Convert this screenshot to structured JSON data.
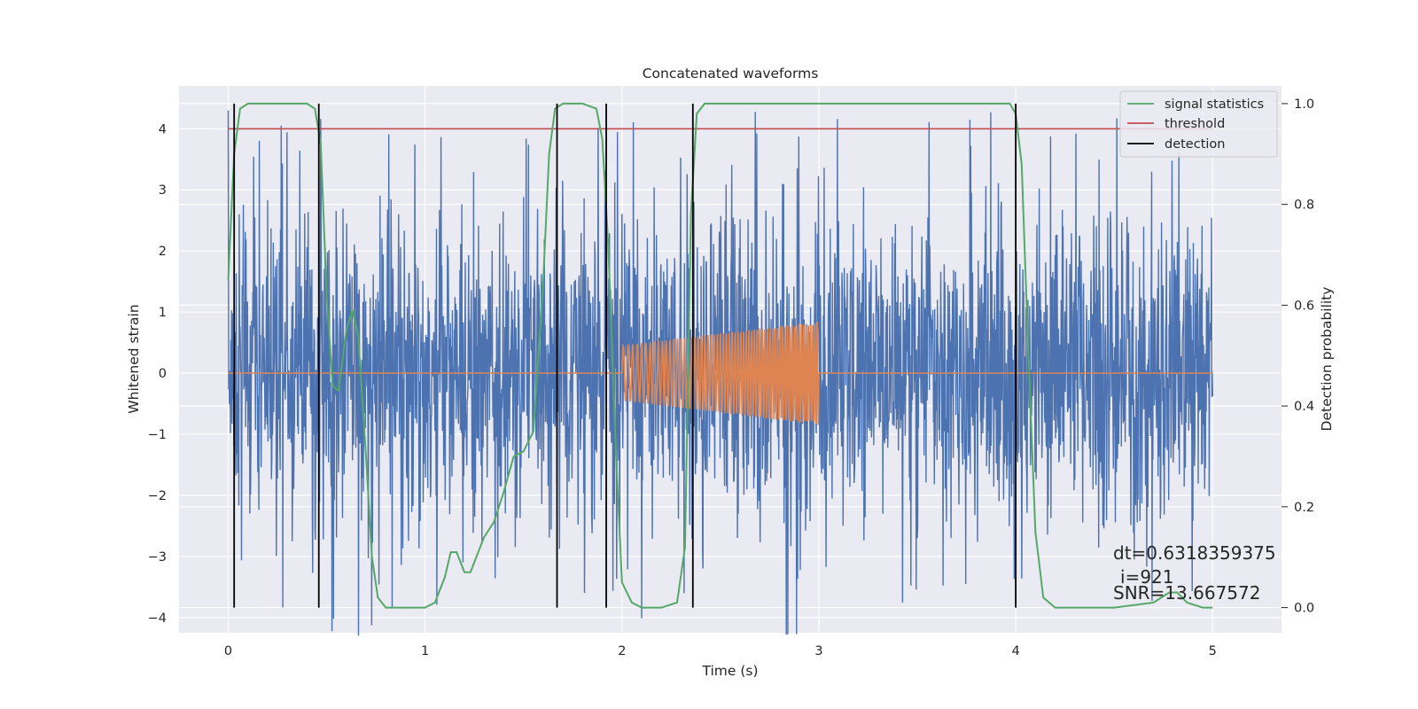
{
  "chart_data": {
    "type": "line",
    "title": "Concatenated waveforms",
    "xlabel": "Time (s)",
    "ylabel": "Whitened strain",
    "y2label": "Detection probability",
    "xlim": [
      -0.25,
      5.35
    ],
    "ylim": [
      -4.25,
      4.7
    ],
    "y2lim": [
      -0.05,
      1.035
    ],
    "x_ticks": [
      0,
      1,
      2,
      3,
      4,
      5
    ],
    "y_ticks": [
      -4,
      -3,
      -2,
      -1,
      0,
      1,
      2,
      3,
      4
    ],
    "y2_ticks": [
      0.0,
      0.2,
      0.4,
      0.6,
      0.8,
      1.0
    ],
    "x_tick_labels": [
      "0",
      "1",
      "2",
      "3",
      "4",
      "5"
    ],
    "y_tick_labels": [
      "−4",
      "−3",
      "−2",
      "−1",
      "0",
      "1",
      "2",
      "3",
      "4"
    ],
    "y2_tick_labels": [
      "0.0",
      "0.2",
      "0.4",
      "0.6",
      "0.8",
      "1.0"
    ],
    "grid": true,
    "legend_position": "top-right",
    "colors": {
      "strain": "#4c72b0",
      "injection": "#dd8452",
      "signal_statistics": "#55a868",
      "threshold": "#c44e52",
      "detection": "#000000",
      "plot_background": "#eaeaf2",
      "grid": "#ffffff"
    },
    "series": [
      {
        "name": "signal statistics",
        "axis": "right",
        "x": [
          0.0,
          0.03,
          0.06,
          0.1,
          0.2,
          0.3,
          0.4,
          0.44,
          0.47,
          0.5,
          0.53,
          0.56,
          0.6,
          0.63,
          0.66,
          0.7,
          0.73,
          0.76,
          0.8,
          0.9,
          1.0,
          1.05,
          1.1,
          1.13,
          1.16,
          1.2,
          1.23,
          1.26,
          1.3,
          1.35,
          1.4,
          1.45,
          1.5,
          1.55,
          1.6,
          1.63,
          1.66,
          1.7,
          1.8,
          1.87,
          1.9,
          1.93,
          1.97,
          2.0,
          2.05,
          2.1,
          2.2,
          2.28,
          2.32,
          2.35,
          2.38,
          2.42,
          2.5,
          3.0,
          3.5,
          3.97,
          4.0,
          4.03,
          4.06,
          4.1,
          4.14,
          4.2,
          4.5,
          4.7,
          4.78,
          4.82,
          4.87,
          4.95,
          5.0
        ],
        "y": [
          0.65,
          0.9,
          0.99,
          1.0,
          1.0,
          1.0,
          1.0,
          0.99,
          0.92,
          0.62,
          0.44,
          0.43,
          0.55,
          0.59,
          0.54,
          0.3,
          0.1,
          0.02,
          0.0,
          0.0,
          0.0,
          0.01,
          0.06,
          0.11,
          0.11,
          0.07,
          0.07,
          0.1,
          0.14,
          0.17,
          0.23,
          0.3,
          0.31,
          0.35,
          0.65,
          0.9,
          0.99,
          1.0,
          1.0,
          0.99,
          0.93,
          0.72,
          0.3,
          0.05,
          0.01,
          0.0,
          0.0,
          0.01,
          0.12,
          0.78,
          0.98,
          1.0,
          1.0,
          1.0,
          1.0,
          1.0,
          0.98,
          0.88,
          0.55,
          0.15,
          0.02,
          0.0,
          0.0,
          0.01,
          0.03,
          0.03,
          0.01,
          0.0,
          0.0
        ]
      },
      {
        "name": "threshold",
        "axis": "right",
        "x": [
          0.0,
          5.0
        ],
        "y": [
          0.95,
          0.95
        ]
      },
      {
        "name": "detection",
        "type": "vlines",
        "x": [
          0.03,
          0.46,
          1.67,
          1.92,
          2.36,
          4.0
        ],
        "ymin": 0.0,
        "ymax": 1.0
      },
      {
        "axis": "left",
        "description": "dense whitened noise trace, amplitude mostly within ±2.5 with spikes up to about ±4",
        "x_range": [
          0.0,
          5.0
        ],
        "typical_amplitude": 2.3,
        "max_excursion": 4.3,
        "seed": 7
      },
      {
        "axis": "left",
        "description": "injected waveform: zero except an oscillating chirp between 2 and 3 s",
        "x_range": [
          0.0,
          5.0
        ],
        "chirp_start": 2.0,
        "chirp_end": 3.0,
        "amplitude_start": 0.45,
        "amplitude_end": 0.85,
        "frequency_start": 40,
        "frequency_end": 90
      }
    ],
    "annotations": [
      {
        "text": "dt=0.6318359375"
      },
      {
        "text": "i=921"
      },
      {
        "text": "SNR=13.667572"
      }
    ]
  }
}
